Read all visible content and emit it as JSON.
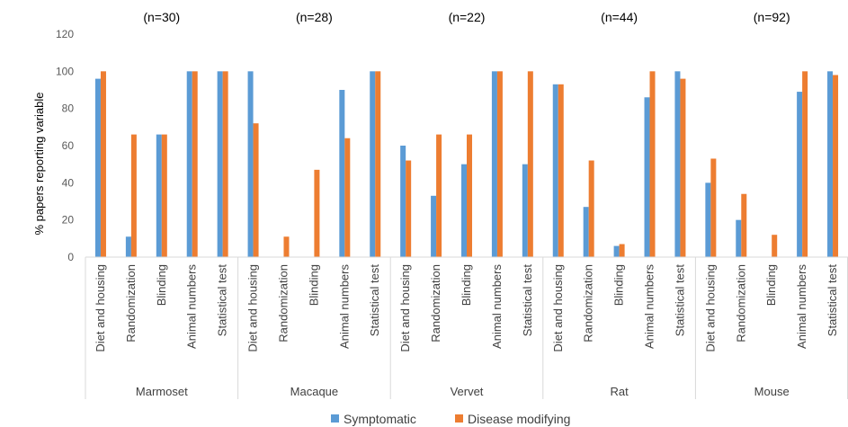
{
  "chart_data": {
    "type": "bar",
    "ylabel": "% papers reporting variable",
    "ylim": [
      0,
      120
    ],
    "yticks": [
      0,
      20,
      40,
      60,
      80,
      100,
      120
    ],
    "grid": false,
    "legend_position": "bottom",
    "series": [
      {
        "name": "Symptomatic",
        "color": "#5B9BD5"
      },
      {
        "name": "Disease modifying",
        "color": "#ED7D31"
      }
    ],
    "groups": [
      {
        "name": "Marmoset",
        "annotation": "(n=30)",
        "categories": [
          "Diet and housing",
          "Randomization",
          "Blinding",
          "Animal numbers",
          "Statistical test"
        ],
        "values": [
          [
            96,
            100
          ],
          [
            11,
            66
          ],
          [
            66,
            66
          ],
          [
            100,
            100
          ],
          [
            100,
            100
          ]
        ]
      },
      {
        "name": "Macaque",
        "annotation": "(n=28)",
        "categories": [
          "Diet and housing",
          "Randomization",
          "Blinding",
          "Animal numbers",
          "Statistical test"
        ],
        "values": [
          [
            100,
            72
          ],
          [
            0,
            11
          ],
          [
            0,
            47
          ],
          [
            90,
            64
          ],
          [
            100,
            100
          ]
        ]
      },
      {
        "name": "Vervet",
        "annotation": "(n=22)",
        "categories": [
          "Diet and housing",
          "Randomization",
          "Blinding",
          "Animal numbers",
          "Statistical test"
        ],
        "values": [
          [
            60,
            52
          ],
          [
            33,
            66
          ],
          [
            50,
            66
          ],
          [
            100,
            100
          ],
          [
            50,
            100
          ]
        ]
      },
      {
        "name": "Rat",
        "annotation": "(n=44)",
        "categories": [
          "Diet and housing",
          "Randomization",
          "Blinding",
          "Animal numbers",
          "Statistical test"
        ],
        "values": [
          [
            93,
            93
          ],
          [
            27,
            52
          ],
          [
            6,
            7
          ],
          [
            86,
            100
          ],
          [
            100,
            96
          ]
        ]
      },
      {
        "name": "Mouse",
        "annotation": "(n=92)",
        "categories": [
          "Diet and housing",
          "Randomization",
          "Blinding",
          "Animal numbers",
          "Statistical test"
        ],
        "values": [
          [
            40,
            53
          ],
          [
            20,
            34
          ],
          [
            0,
            12
          ],
          [
            89,
            100
          ],
          [
            100,
            98
          ]
        ]
      }
    ]
  }
}
